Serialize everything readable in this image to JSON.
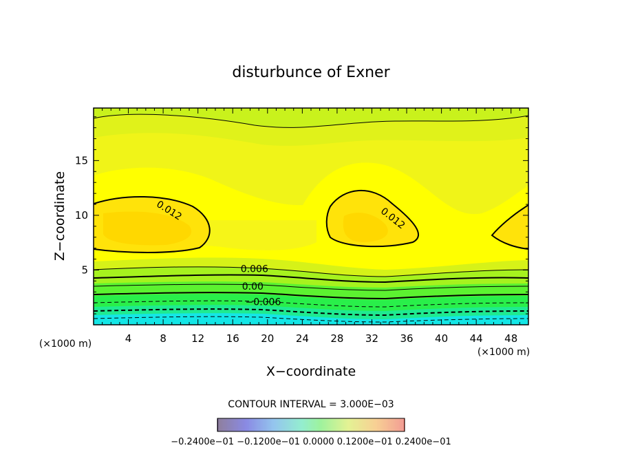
{
  "chart_data": {
    "type": "heatmap",
    "title": "disturbunce of Exner",
    "xlabel": "X−coordinate",
    "ylabel": "Z−coordinate",
    "x_unit_left": "(×1000 m)",
    "x_unit_right": "(×1000 m)",
    "xlim": [
      0,
      50
    ],
    "ylim": [
      0,
      19.8
    ],
    "x_ticks": [
      4,
      8,
      12,
      16,
      20,
      24,
      28,
      32,
      36,
      40,
      44,
      48
    ],
    "y_ticks": [
      5,
      10,
      15
    ],
    "contour_interval_text": "CONTOUR INTERVAL = 3.000E−03",
    "contour_labels": [
      {
        "text": "0.012",
        "x": 8.5,
        "z": 10.2
      },
      {
        "text": "0.012",
        "x": 34.2,
        "z": 9.5
      },
      {
        "text": "0.006",
        "x": 18.5,
        "z": 4.8
      },
      {
        "text": "0.00",
        "x": 18.3,
        "z": 3.2
      },
      {
        "text": "−0.006",
        "x": 19.5,
        "z": 1.8
      }
    ],
    "colorbar_text": "−0.2400e−01  −0.1200e−01  0.0000  0.1200e−01  0.2400e−01",
    "colorbar_range": [
      -0.024,
      0.024
    ],
    "colors": {
      "negative_low": "#14e6e6",
      "near_zero": "#29ef4a",
      "low_positive": "#a6f21e",
      "mid_positive": "#e0f21a",
      "high_positive": "#ffff00",
      "peak": "#ffd800",
      "line": "#000000"
    }
  }
}
